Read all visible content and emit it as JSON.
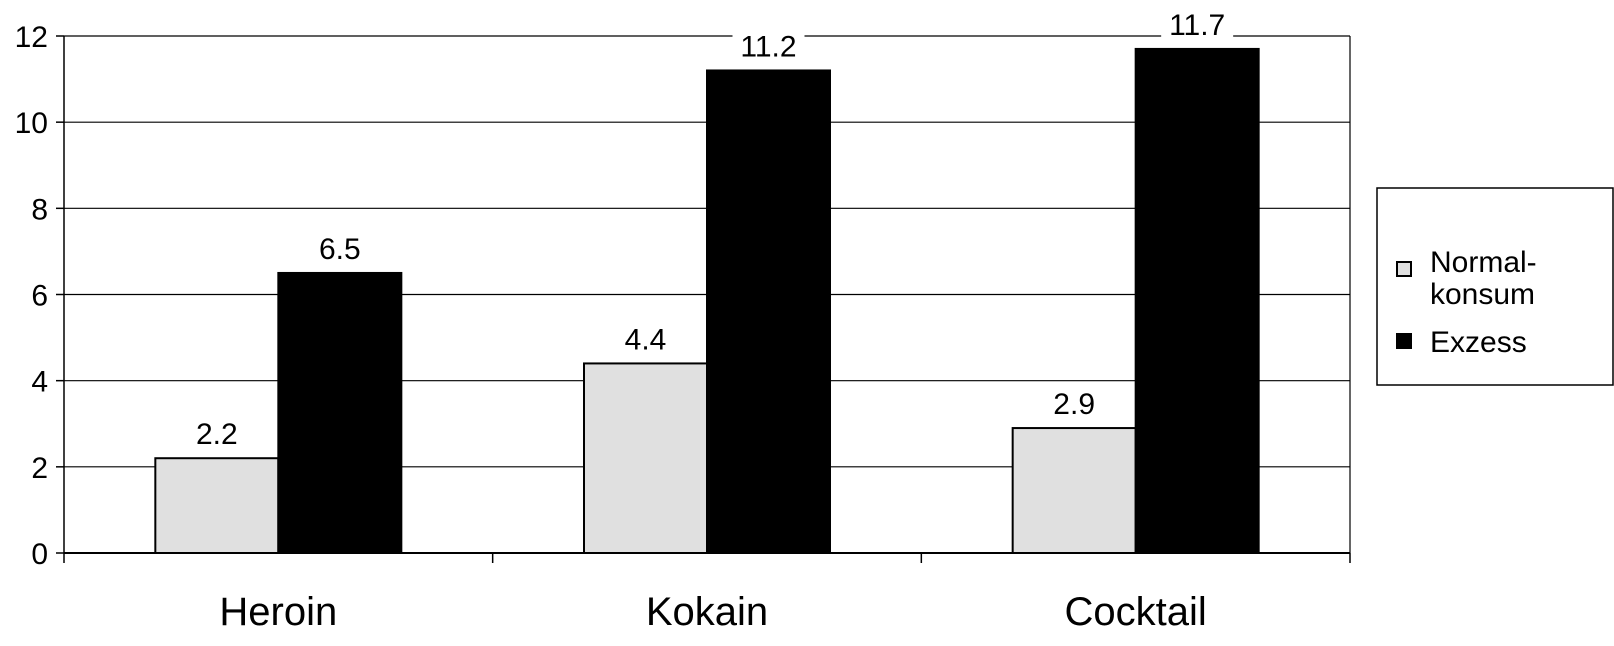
{
  "chart_data": {
    "type": "bar",
    "title": "",
    "xlabel": "",
    "ylabel": "",
    "categories": [
      "Heroin",
      "Kokain",
      "Cocktail"
    ],
    "series": [
      {
        "name": "Normal-konsum",
        "legend_lines": [
          "Normal-",
          "konsum"
        ],
        "values": [
          2.2,
          4.4,
          2.9
        ],
        "color": "#e0e0e0"
      },
      {
        "name": "Exzess",
        "legend_lines": [
          "Exzess"
        ],
        "values": [
          6.5,
          11.2,
          11.7
        ],
        "color": "#000000"
      }
    ],
    "data_labels": [
      [
        "2.2",
        "4.4",
        "2.9"
      ],
      [
        "6.5",
        "11.2",
        "11.7"
      ]
    ],
    "ylim": [
      0,
      12
    ],
    "yticks": [
      0,
      2,
      4,
      6,
      8,
      10,
      12
    ],
    "grid": true,
    "legend_position": "right"
  }
}
